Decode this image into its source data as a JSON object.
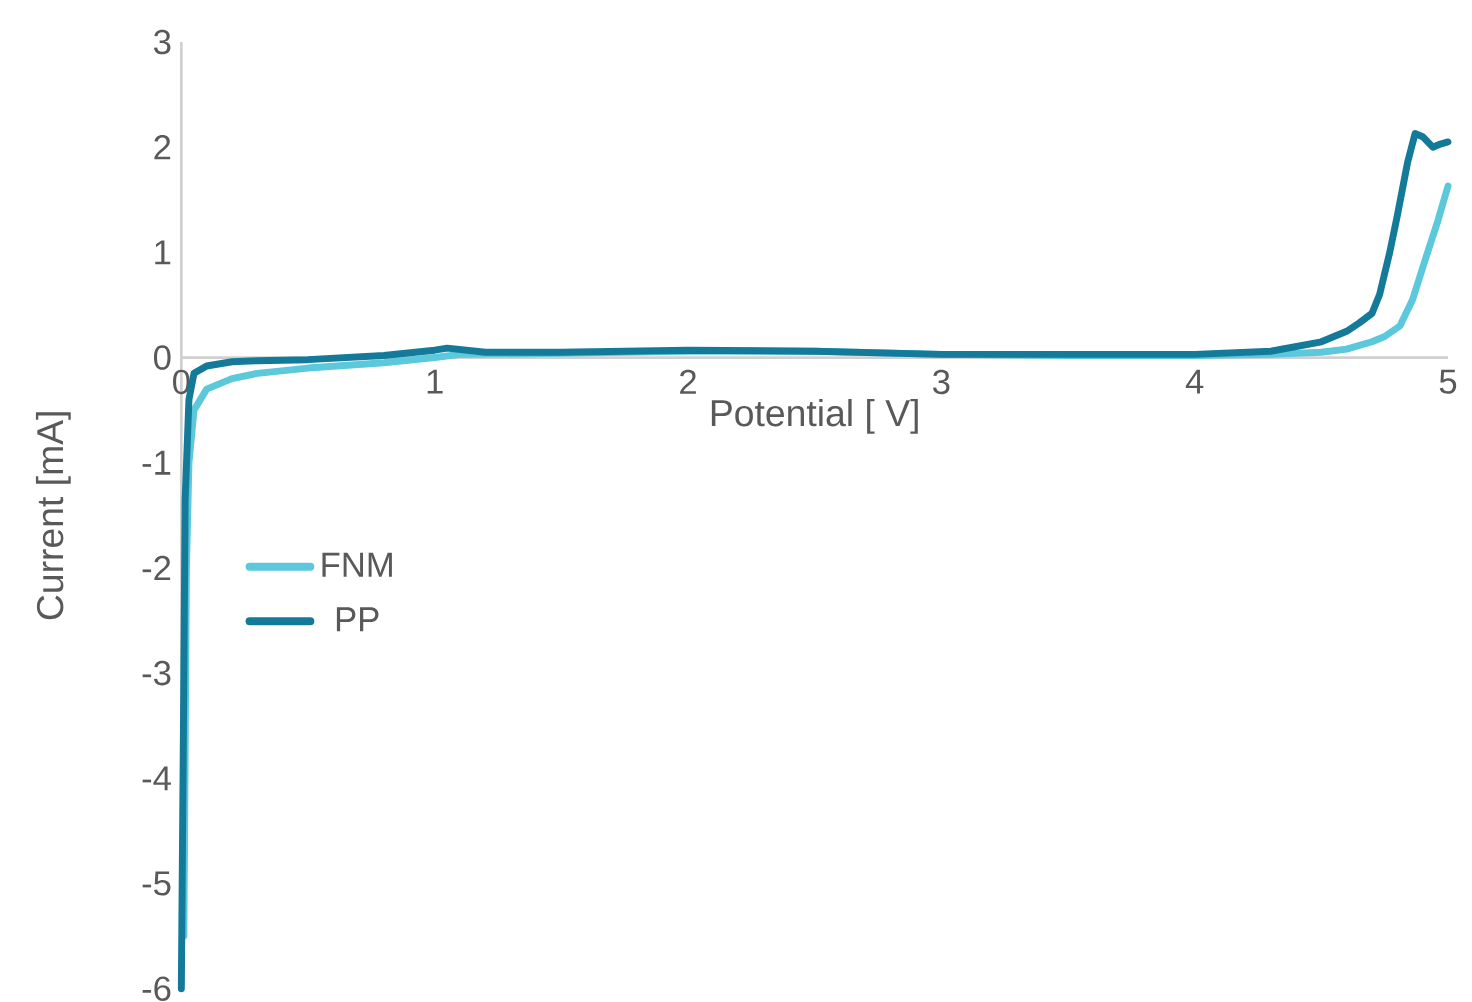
{
  "chart_data": {
    "type": "line",
    "xlabel": "Potential [ V]",
    "ylabel": "Current [mA]",
    "xlim": [
      0,
      5
    ],
    "ylim": [
      -6,
      3
    ],
    "xticks": [
      0,
      1,
      2,
      3,
      4,
      5
    ],
    "yticks": [
      -6,
      -5,
      -4,
      -3,
      -2,
      -1,
      0,
      1,
      2,
      3
    ],
    "grid": false,
    "legend": "left",
    "marker": "none",
    "line_style": "solid",
    "series": [
      {
        "name": "FNM",
        "color": "#5bc8db",
        "x": [
          0.01,
          0.02,
          0.03,
          0.05,
          0.1,
          0.2,
          0.3,
          0.5,
          0.8,
          1.0,
          1.1,
          1.5,
          2.0,
          2.5,
          3.0,
          3.5,
          4.0,
          4.3,
          4.5,
          4.6,
          4.7,
          4.75,
          4.81,
          4.86,
          4.91,
          4.96,
          5.0
        ],
        "values": [
          -5.5,
          -2.0,
          -1.0,
          -0.5,
          -0.3,
          -0.2,
          -0.15,
          -0.1,
          -0.05,
          0.0,
          0.03,
          0.04,
          0.06,
          0.06,
          0.03,
          0.02,
          0.02,
          0.03,
          0.05,
          0.08,
          0.15,
          0.2,
          0.3,
          0.55,
          0.93,
          1.3,
          1.63
        ]
      },
      {
        "name": "PP",
        "color": "#147a9a",
        "x": [
          0.0,
          0.01,
          0.015,
          0.03,
          0.05,
          0.1,
          0.2,
          0.3,
          0.5,
          0.8,
          1.0,
          1.05,
          1.2,
          1.5,
          2.0,
          2.5,
          3.0,
          3.5,
          4.0,
          4.3,
          4.5,
          4.6,
          4.65,
          4.7,
          4.73,
          4.77,
          4.8,
          4.84,
          4.87,
          4.9,
          4.94,
          4.97,
          5.0
        ],
        "values": [
          -6.0,
          -3.0,
          -1.35,
          -0.4,
          -0.15,
          -0.08,
          -0.04,
          -0.03,
          -0.02,
          0.02,
          0.07,
          0.09,
          0.05,
          0.05,
          0.07,
          0.06,
          0.03,
          0.03,
          0.03,
          0.06,
          0.15,
          0.25,
          0.33,
          0.42,
          0.6,
          1.0,
          1.35,
          1.85,
          2.13,
          2.1,
          2.0,
          2.03,
          2.05
        ]
      }
    ]
  }
}
